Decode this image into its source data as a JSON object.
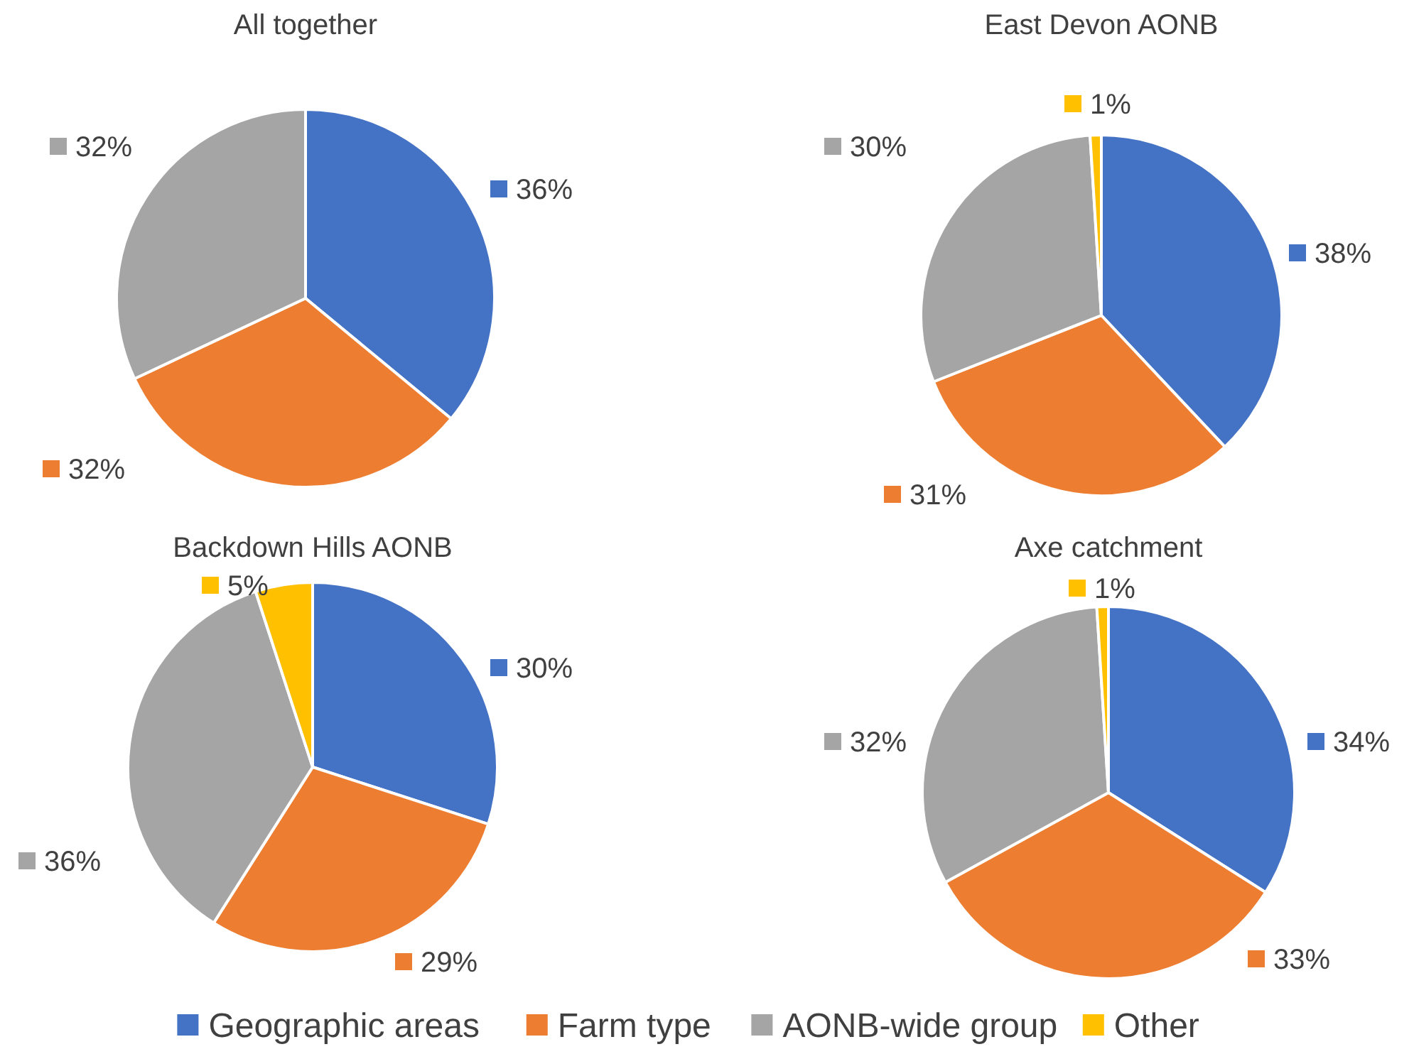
{
  "chart_data": [
    {
      "type": "pie",
      "title": "All together",
      "categories": [
        "Geographic areas",
        "Farm type",
        "AONB-wide group",
        "Other"
      ],
      "values": [
        36,
        32,
        32,
        0
      ],
      "value_labels": [
        "36%",
        "32%",
        "32%",
        null
      ],
      "colors": [
        "#4472c4",
        "#ed7d31",
        "#a5a5a5",
        "#ffc000"
      ],
      "legend": "bottom"
    },
    {
      "type": "pie",
      "title": "East Devon AONB",
      "categories": [
        null,
        null,
        null,
        null
      ],
      "values": [
        38,
        31,
        30,
        1
      ],
      "value_labels": [
        "38%",
        "31%",
        "30%",
        "1%"
      ],
      "colors": [
        "#4472c4",
        "#ed7d31",
        "#a5a5a5",
        "#ffc000"
      ]
    },
    {
      "type": "pie",
      "title": "Backdown Hills AONB",
      "categories": [
        null,
        null,
        null,
        null
      ],
      "values": [
        30,
        29,
        36,
        5
      ],
      "value_labels": [
        "30%",
        "29%",
        "36%",
        "5%"
      ],
      "colors": [
        "#4472c4",
        "#ed7d31",
        "#a5a5a5",
        "#ffc000"
      ]
    },
    {
      "type": "pie",
      "title": "Axe catchment",
      "categories": [
        null,
        null,
        null,
        null
      ],
      "values": [
        34,
        33,
        32,
        1
      ],
      "value_labels": [
        "34%",
        "33%",
        "32%",
        "1%"
      ],
      "colors": [
        "#4472c4",
        "#ed7d31",
        "#a5a5a5",
        "#ffc000"
      ]
    }
  ]
}
